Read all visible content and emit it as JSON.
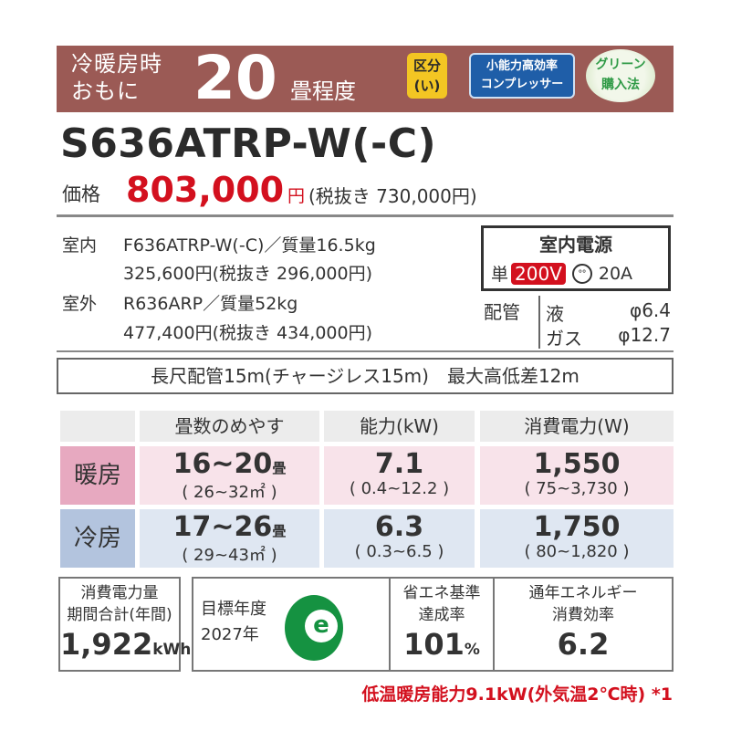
{
  "header": {
    "line1": "冷暖房時",
    "line2": "おもに",
    "tatami": "20",
    "tatami_unit": "畳程度",
    "badges": {
      "kubun": [
        "区分",
        "(い)"
      ],
      "compressor": [
        "小能力高効率",
        "コンプレッサー"
      ],
      "green": [
        "グリーン",
        "購入法"
      ]
    }
  },
  "model": "S636ATRP-W(-C)",
  "price": {
    "label": "価格",
    "value": "803,000",
    "yen": "円",
    "ex_tax": "(税抜き 730,000円)"
  },
  "indoor": {
    "label": "室内",
    "model": "F636ATRP-W(-C)／質量16.5kg",
    "price": "325,600円(税抜き 296,000円)"
  },
  "outdoor": {
    "label": "室外",
    "model": "R636ARP／質量52kg",
    "price": "477,400円(税抜き 434,000円)"
  },
  "power_supply": {
    "title": "室内電源",
    "phase": "単",
    "voltage": "200V",
    "amp": "20A",
    "plug_icon": "plug-outlet-icon"
  },
  "piping": {
    "label": "配管",
    "liquid_label": "液",
    "liquid": "φ6.4",
    "gas_label": "ガス",
    "gas": "φ12.7"
  },
  "long_pipe": "長尺配管15m(チャージレス15m)　最大高低差12m",
  "table": {
    "headers": [
      "畳数のめやす",
      "能力(kW)",
      "消費電力(W)"
    ],
    "rows": [
      {
        "label": "暖房",
        "tatami": "16~20",
        "tatami_unit": "畳",
        "area": "( 26~32㎡ )",
        "capacity": "7.1",
        "capacity_range": "( 0.4~12.2 )",
        "power": "1,550",
        "power_range": "( 75~3,730 )",
        "color": "#f8e3ea",
        "label_color": "#e7a9c0"
      },
      {
        "label": "冷房",
        "tatami": "17~26",
        "tatami_unit": "畳",
        "area": "( 29~43㎡ )",
        "capacity": "6.3",
        "capacity_range": "( 0.3~6.5 )",
        "power": "1,750",
        "power_range": "( 80~1,820 )",
        "color": "#dfe7f2",
        "label_color": "#b3c4de"
      }
    ]
  },
  "annual": {
    "line1": "消費電力量",
    "line2": "期間合計(年間)",
    "value": "1,922",
    "unit": "kWh"
  },
  "target": {
    "line1": "目標年度",
    "line2": "2027年",
    "mark": "e"
  },
  "achievement": {
    "line1": "省エネ基準",
    "line2": "達成率",
    "value": "101",
    "unit": "%"
  },
  "apf": {
    "line1": "通年エネルギー",
    "line2": "消費効率",
    "value": "6.2"
  },
  "footnote": "低温暖房能力9.1kW(外気温2℃時) *1"
}
